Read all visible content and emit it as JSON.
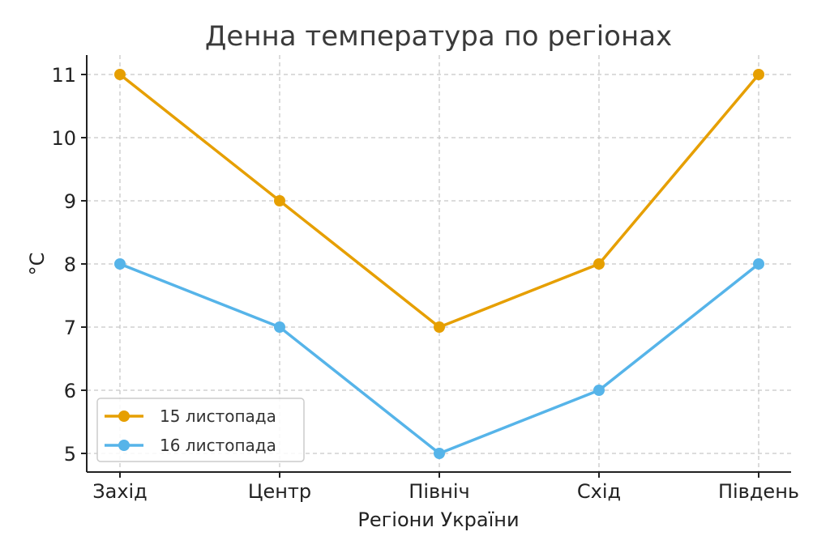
{
  "chart_data": {
    "type": "line",
    "title": "Денна температура по регіонах",
    "xlabel": "Регіони України",
    "ylabel": "°C",
    "categories": [
      "Захід",
      "Центр",
      "Північ",
      "Схід",
      "Південь"
    ],
    "series": [
      {
        "name": "15 листопада",
        "color": "#E69F00",
        "values": [
          11,
          9,
          7,
          8,
          11
        ]
      },
      {
        "name": "16 листопада",
        "color": "#56B4E9",
        "values": [
          8,
          7,
          5,
          6,
          8
        ]
      }
    ],
    "yticks": [
      5,
      6,
      7,
      8,
      9,
      10,
      11
    ],
    "ylim": [
      4.7,
      11.3
    ],
    "grid": true,
    "grid_style": "dashed",
    "legend_position": "lower left",
    "markers": "circle"
  }
}
